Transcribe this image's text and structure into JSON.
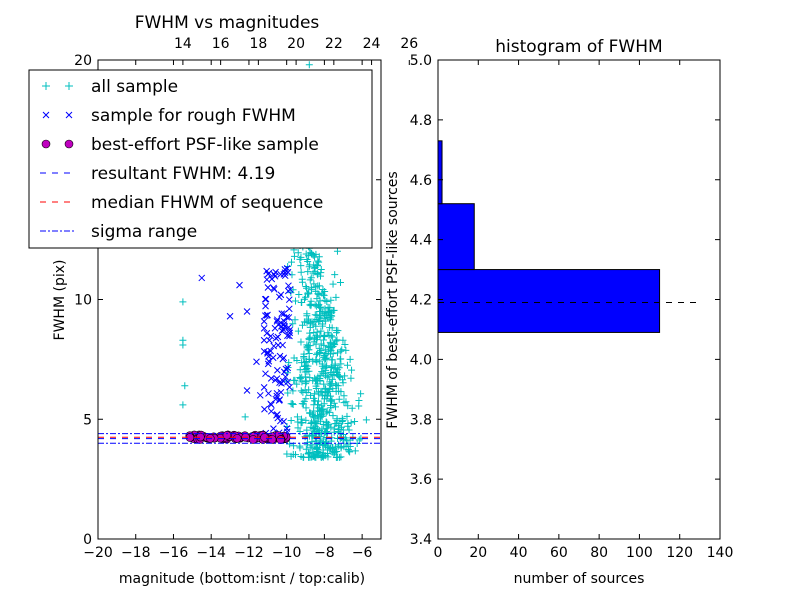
{
  "chart_data": [
    {
      "type": "scatter",
      "title": "FWHM vs magnitudes",
      "xlabel": "magnitude (bottom:isnt / top:calib)",
      "ylabel": "FWHM (pix)",
      "xlim": [
        -20,
        -5
      ],
      "ylim": [
        0,
        20
      ],
      "x_ticks": [
        "−20",
        "−18",
        "−16",
        "−14",
        "−12",
        "−10",
        "−8",
        "−6"
      ],
      "y_ticks": [
        "0",
        "5",
        "10",
        "15",
        "20"
      ],
      "top_x_ticks": [
        "14",
        "16",
        "18",
        "20",
        "22",
        "24",
        "26"
      ],
      "colors": {
        "all": "#00bfbf",
        "rough": "#0000ff",
        "best": "#bf00bf",
        "resultant": "#0000ff",
        "median": "#ff0000",
        "sigma": "#0000ff"
      },
      "legend": {
        "placement": "upper-left",
        "entries": [
          "all sample",
          "sample for rough FWHM",
          "best-effort PSF-like sample",
          "resultant FWHM: 4.19",
          "median FHWM of sequence",
          "sigma range"
        ]
      },
      "resultant_fwhm": 4.19,
      "median_fwhm": 4.25,
      "sigma_range": [
        4.0,
        4.4
      ],
      "best_sample": {
        "x_range": [
          -15.2,
          -10.0
        ],
        "y_center": 4.25,
        "y_spread": 0.1
      },
      "rough_sample": {
        "x_range": [
          -11.2,
          -9.8
        ],
        "y_range": [
          4.1,
          11.3
        ],
        "outliers": [
          [
            -14.5,
            10.9
          ],
          [
            -12.5,
            10.6
          ],
          [
            -12.1,
            9.5
          ],
          [
            -13.0,
            9.3
          ],
          [
            -12.1,
            6.2
          ],
          [
            -11.6,
            7.4
          ],
          [
            -11.4,
            6.0
          ],
          [
            -10.5,
            5.2
          ]
        ]
      },
      "all_sample": {
        "x_range": [
          -10.0,
          -5.0
        ],
        "y_range": [
          3.2,
          20.0
        ],
        "peak_x": -8.3,
        "outliers": [
          [
            -15.5,
            9.9
          ],
          [
            -15.5,
            8.3
          ],
          [
            -15.5,
            8.1
          ],
          [
            -15.4,
            6.4
          ],
          [
            -15.5,
            5.6
          ],
          [
            -12.2,
            5.1
          ],
          [
            -8.8,
            19.8
          ]
        ]
      }
    },
    {
      "type": "histogram",
      "title": "histogram of FWHM",
      "xlabel": "number of sources",
      "ylabel": "FWHM of best-effort PSF-like sources",
      "xlim": [
        0,
        140
      ],
      "ylim": [
        3.4,
        5.0
      ],
      "x_ticks": [
        "0",
        "20",
        "40",
        "60",
        "80",
        "100",
        "120",
        "140"
      ],
      "y_ticks": [
        "3.4",
        "3.6",
        "3.8",
        "4.0",
        "4.2",
        "4.4",
        "4.6",
        "4.8",
        "5.0"
      ],
      "colors": {
        "bars": "#0000ff",
        "reference": "#000000"
      },
      "bins": [
        {
          "low": 4.09,
          "high": 4.3,
          "count": 110
        },
        {
          "low": 4.3,
          "high": 4.52,
          "count": 18
        },
        {
          "low": 4.52,
          "high": 4.73,
          "count": 2
        }
      ],
      "reference_line": 4.19
    }
  ]
}
